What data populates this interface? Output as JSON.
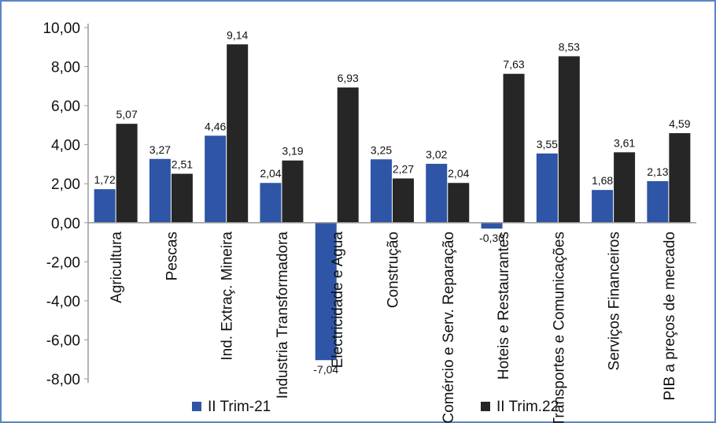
{
  "chart_data": {
    "type": "bar",
    "categories": [
      "Agricultura",
      "Pescas",
      "Ind. Extraç. Mineira",
      "Industria Transformadora",
      "Electricidade e Agua",
      "Construção",
      "Comércio e Serv. Reparação",
      "Hoteis e Restaurantes",
      "Transportes e Comunicações",
      "Serviços Financeiros",
      "PIB a preços de mercado"
    ],
    "series": [
      {
        "name": "II Trim-21",
        "color": "#2e55a6",
        "values": [
          1.72,
          3.27,
          4.46,
          2.04,
          -7.04,
          3.25,
          3.02,
          -0.3,
          3.55,
          1.68,
          2.13
        ],
        "labels": [
          "1,72",
          "3,27",
          "4,46",
          "2,04",
          "-7,04",
          "3,25",
          "3,02",
          "-0,30",
          "3,55",
          "1,68",
          "2,13"
        ]
      },
      {
        "name": "II Trim.22",
        "color": "#262626",
        "values": [
          5.07,
          2.51,
          9.14,
          3.19,
          6.93,
          2.27,
          2.04,
          7.63,
          8.53,
          3.61,
          4.59
        ],
        "labels": [
          "5,07",
          "2,51",
          "9,14",
          "3,19",
          "6,93",
          "2,27",
          "2,04",
          "7,63",
          "8,53",
          "3,61",
          "4,59"
        ]
      }
    ],
    "ylim": [
      -8,
      10
    ],
    "yticks": [
      10,
      8,
      6,
      4,
      2,
      0,
      -2,
      -4,
      -6,
      -8
    ],
    "ytick_labels": [
      "10,00",
      "8,00",
      "6,00",
      "4,00",
      "2,00",
      "0,00",
      "-2,00",
      "-4,00",
      "-6,00",
      "-8,00"
    ],
    "title": "",
    "xlabel": "",
    "ylabel": "",
    "grid": false,
    "legend_position": "bottom"
  }
}
